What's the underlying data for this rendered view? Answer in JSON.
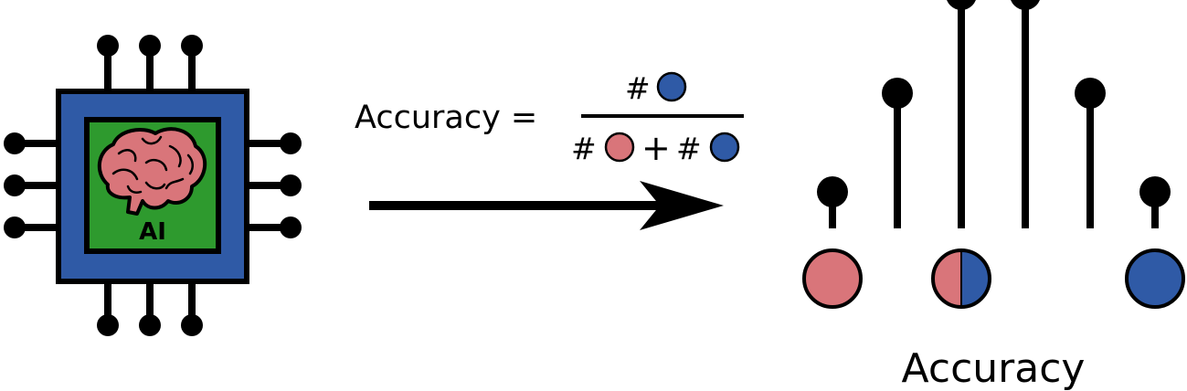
{
  "chip": {
    "label": "AI",
    "colors": {
      "frame": "#2f5aa6",
      "core": "#2e9a2e",
      "brain": "#d9757a",
      "pins": "#000000"
    }
  },
  "formula": {
    "lhs": "Accuracy =",
    "hash": "#",
    "plus": "+",
    "numerator_marker": "blue",
    "denominator_markers": [
      "red",
      "blue"
    ]
  },
  "stem_chart": {
    "xlabel": "Accuracy",
    "stems": [
      {
        "value": 1,
        "marker": "red"
      },
      {
        "value": 3
      },
      {
        "value": 5,
        "marker": "half"
      },
      {
        "value": 5
      },
      {
        "value": 3
      },
      {
        "value": 1,
        "marker": "blue"
      }
    ],
    "colors": {
      "red": "#d9757a",
      "blue": "#2f5aa6"
    }
  }
}
